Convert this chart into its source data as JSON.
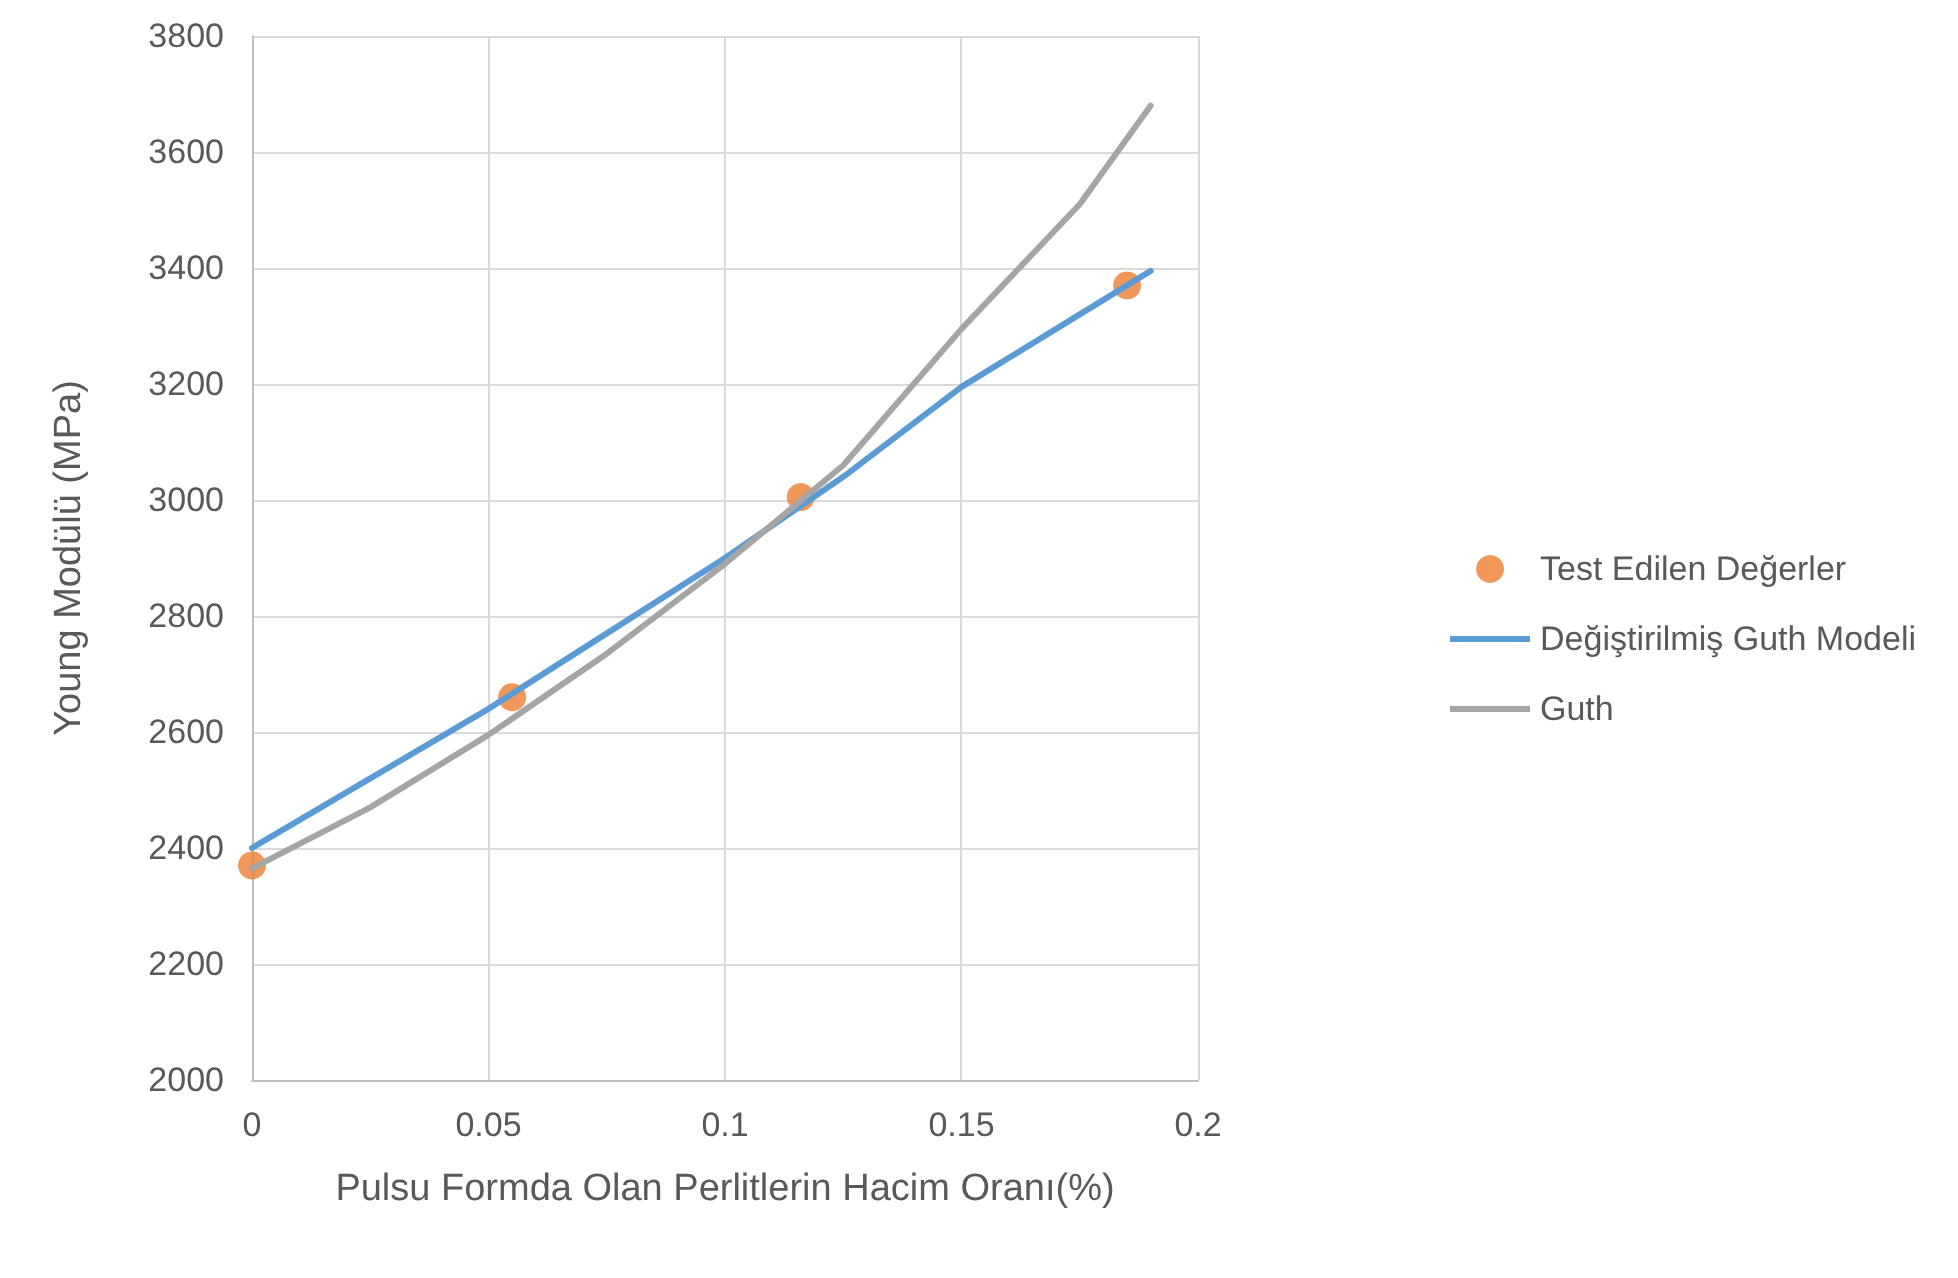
{
  "chart_data": {
    "type": "line",
    "xlabel": "Pulsu Formda Olan Perlitlerin Hacim Oranı(%)",
    "ylabel": "Young Modülü (MPa)",
    "xlim": [
      0,
      0.2
    ],
    "xticks": [
      0,
      0.05,
      0.1,
      0.15,
      0.2
    ],
    "ylim": [
      2000,
      3800
    ],
    "yticks": [
      2000,
      2200,
      2400,
      2600,
      2800,
      3000,
      3200,
      3400,
      3600,
      3800
    ],
    "grid": true,
    "legend": "right",
    "marker": "none",
    "line_style": "solid",
    "series": [
      {
        "name": "Test Edilen Değerler",
        "type": "scatter",
        "marker": "circle",
        "color": "#ed7d31",
        "x": [
          0,
          0.055,
          0.116,
          0.185
        ],
        "values": [
          2370,
          2660,
          3005,
          3370
        ]
      },
      {
        "name": "Değiştirilmiş Guth Modeli",
        "color": "#5b9bd5",
        "x": [
          0,
          0.025,
          0.05,
          0.075,
          0.1,
          0.125,
          0.15,
          0.175,
          0.19
        ],
        "values": [
          2400,
          2520,
          2640,
          2770,
          2900,
          3040,
          3195,
          3320,
          3395
        ]
      },
      {
        "name": "Guth",
        "color": "#a5a5a5",
        "x": [
          0,
          0.025,
          0.05,
          0.075,
          0.1,
          0.125,
          0.15,
          0.175,
          0.19
        ],
        "values": [
          2365,
          2470,
          2595,
          2735,
          2890,
          3060,
          3295,
          3510,
          3680
        ]
      }
    ]
  }
}
